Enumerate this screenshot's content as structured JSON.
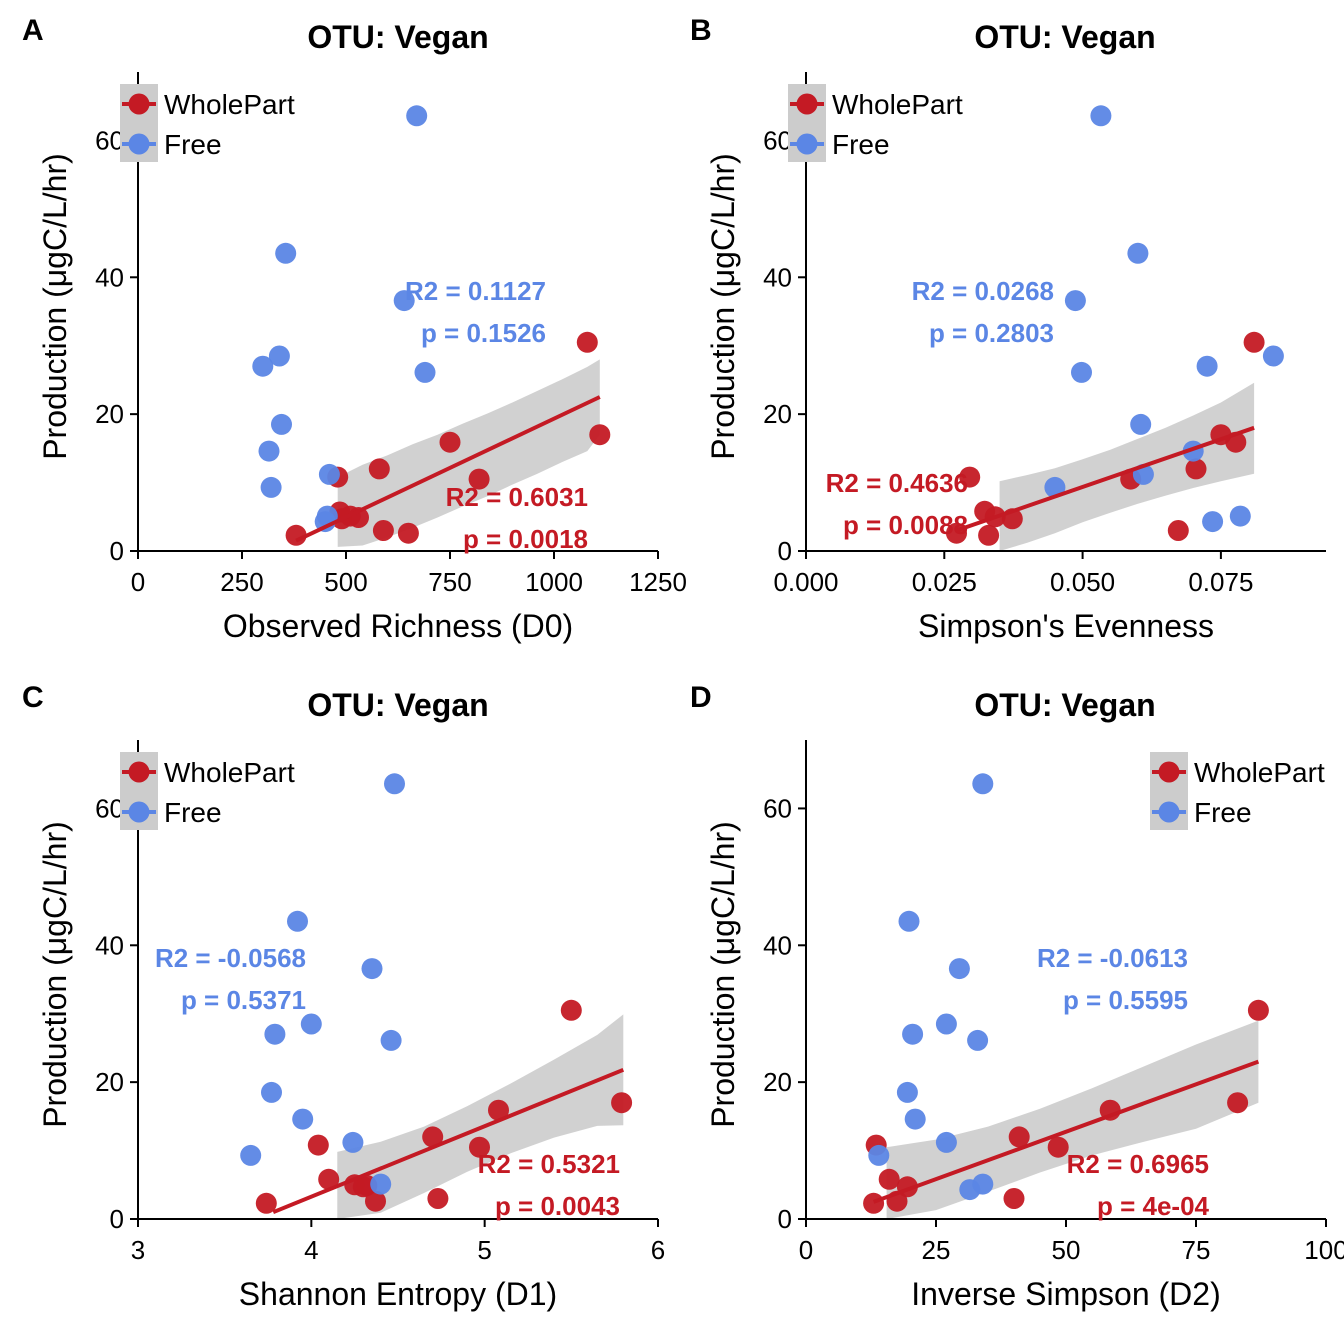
{
  "colors": {
    "wholepart": "#c41a24",
    "free": "#5b86e5",
    "ribbon": "#cccccc",
    "axis": "#000000"
  },
  "chart_data": [
    {
      "panel_letter": "A",
      "type": "scatter",
      "title": "OTU: Vegan",
      "xlabel": "Observed Richness (D0)",
      "ylabel": "Production (μgC/L/hr)",
      "xlim": [
        0,
        1250
      ],
      "ylim": [
        0,
        70
      ],
      "x_ticks": [
        0,
        250,
        500,
        750,
        1000,
        1250
      ],
      "x_tick_labels": [
        "0",
        "250",
        "500",
        "750",
        "1000",
        "1250"
      ],
      "y_ticks": [
        0,
        20,
        40,
        60
      ],
      "y_tick_labels": [
        "0",
        "20",
        "40",
        "60"
      ],
      "grid": false,
      "legend_position": "top-left",
      "series": [
        {
          "name": "WholePart",
          "color_key": "wholepart",
          "points": [
            [
              380,
              2.3
            ],
            [
              485,
              5.7
            ],
            [
              490,
              4.7
            ],
            [
              510,
              5.1
            ],
            [
              530,
              4.9
            ],
            [
              480,
              10.8
            ],
            [
              580,
              12.0
            ],
            [
              590,
              3.0
            ],
            [
              650,
              2.6
            ],
            [
              750,
              15.9
            ],
            [
              820,
              10.5
            ],
            [
              1080,
              30.5
            ],
            [
              1110,
              17.0
            ]
          ],
          "fit": {
            "x": [
              380,
              1110
            ],
            "y": [
              1.5,
              22.5
            ]
          },
          "ribbon": {
            "x": [
              480,
              540,
              600,
              660,
              720,
              780,
              840,
              900,
              960,
              1020,
              1080,
              1110
            ],
            "upper": [
              10.8,
              12.6,
              14.0,
              15.6,
              17.0,
              18.6,
              20.1,
              21.7,
              23.4,
              25.1,
              26.9,
              28.0
            ],
            "lower": [
              0.6,
              0.8,
              2.0,
              3.4,
              4.9,
              6.5,
              8.0,
              9.7,
              11.3,
              13.0,
              14.6,
              17.0
            ]
          },
          "stats": [
            "R2 = 0.6031",
            "p = 0.0018"
          ]
        },
        {
          "name": "Free",
          "color_key": "free",
          "points": [
            [
              300,
              27.0
            ],
            [
              340,
              28.5
            ],
            [
              355,
              43.5
            ],
            [
              345,
              18.5
            ],
            [
              315,
              14.6
            ],
            [
              320,
              9.3
            ],
            [
              450,
              4.3
            ],
            [
              455,
              5.1
            ],
            [
              460,
              11.2
            ],
            [
              640,
              36.6
            ],
            [
              670,
              63.6
            ],
            [
              690,
              26.1
            ]
          ],
          "stats": [
            "R2 = 0.1127",
            "p = 0.1526"
          ]
        }
      ]
    },
    {
      "panel_letter": "B",
      "type": "scatter",
      "title": "OTU: Vegan",
      "xlabel": "Simpson's Evenness",
      "ylabel": "Production (μgC/L/hr)",
      "xlim": [
        0,
        0.094
      ],
      "ylim": [
        0,
        70
      ],
      "x_ticks": [
        0,
        0.025,
        0.05,
        0.075
      ],
      "x_tick_labels": [
        "0.000",
        "0.025",
        "0.050",
        "0.075"
      ],
      "y_ticks": [
        0,
        20,
        40,
        60
      ],
      "y_tick_labels": [
        "0",
        "20",
        "40",
        "60"
      ],
      "grid": false,
      "legend_position": "top-left",
      "series": [
        {
          "name": "WholePart",
          "color_key": "wholepart",
          "points": [
            [
              0.0272,
              2.6
            ],
            [
              0.0296,
              10.8
            ],
            [
              0.0323,
              5.8
            ],
            [
              0.033,
              2.3
            ],
            [
              0.0342,
              5.0
            ],
            [
              0.0373,
              4.7
            ],
            [
              0.0587,
              10.5
            ],
            [
              0.0673,
              3.0
            ],
            [
              0.0705,
              12.0
            ],
            [
              0.075,
              17.0
            ],
            [
              0.0777,
              15.9
            ],
            [
              0.081,
              30.5
            ]
          ],
          "fit": {
            "x": [
              0.0272,
              0.081
            ],
            "y": [
              3.0,
              18.0
            ]
          },
          "ribbon": {
            "x": [
              0.035,
              0.04,
              0.045,
              0.05,
              0.055,
              0.06,
              0.065,
              0.07,
              0.075,
              0.081
            ],
            "upper": [
              10.2,
              11.1,
              12.1,
              13.4,
              14.8,
              16.4,
              18.0,
              19.8,
              21.7,
              24.6
            ],
            "lower": [
              0.0,
              1.2,
              2.6,
              4.2,
              5.6,
              6.9,
              8.1,
              9.2,
              10.2,
              11.3
            ]
          },
          "stats": [
            "R2 = 0.4636",
            "p = 0.0088"
          ]
        },
        {
          "name": "Free",
          "color_key": "free",
          "points": [
            [
              0.045,
              9.3
            ],
            [
              0.0487,
              36.6
            ],
            [
              0.0498,
              26.1
            ],
            [
              0.0533,
              63.6
            ],
            [
              0.06,
              43.5
            ],
            [
              0.0605,
              18.5
            ],
            [
              0.061,
              11.2
            ],
            [
              0.07,
              14.6
            ],
            [
              0.0725,
              27.0
            ],
            [
              0.0735,
              4.3
            ],
            [
              0.0785,
              5.1
            ],
            [
              0.0845,
              28.5
            ]
          ],
          "stats": [
            "R2 = 0.0268",
            "p = 0.2803"
          ]
        }
      ]
    },
    {
      "panel_letter": "C",
      "type": "scatter",
      "title": "OTU: Vegan",
      "xlabel": "Shannon Entropy (D1)",
      "ylabel": "Production (μgC/L/hr)",
      "xlim": [
        3,
        6
      ],
      "ylim": [
        0,
        70
      ],
      "x_ticks": [
        3,
        4,
        5,
        6
      ],
      "x_tick_labels": [
        "3",
        "4",
        "5",
        "6"
      ],
      "y_ticks": [
        0,
        20,
        40,
        60
      ],
      "y_tick_labels": [
        "0",
        "20",
        "40",
        "60"
      ],
      "grid": false,
      "legend_position": "top-left",
      "series": [
        {
          "name": "WholePart",
          "color_key": "wholepart",
          "points": [
            [
              3.74,
              2.3
            ],
            [
              4.04,
              10.8
            ],
            [
              4.1,
              5.8
            ],
            [
              4.25,
              5.0
            ],
            [
              4.3,
              4.7
            ],
            [
              4.32,
              4.9
            ],
            [
              4.37,
              2.6
            ],
            [
              4.7,
              12.0
            ],
            [
              4.73,
              3.0
            ],
            [
              4.97,
              10.5
            ],
            [
              5.08,
              15.9
            ],
            [
              5.5,
              30.5
            ],
            [
              5.79,
              17.0
            ]
          ],
          "fit": {
            "x": [
              3.78,
              5.8
            ],
            "y": [
              1.0,
              21.8
            ]
          },
          "ribbon": {
            "x": [
              4.15,
              4.4,
              4.65,
              4.9,
              5.15,
              5.4,
              5.65,
              5.8
            ],
            "upper": [
              9.8,
              11.3,
              13.5,
              16.5,
              19.8,
              23.3,
              26.9,
              29.9
            ],
            "lower": [
              0.0,
              0.9,
              3.8,
              6.9,
              9.6,
              11.9,
              13.6,
              13.7
            ]
          },
          "stats": [
            "R2 = 0.5321",
            "p = 0.0043"
          ]
        },
        {
          "name": "Free",
          "color_key": "free",
          "points": [
            [
              3.65,
              9.3
            ],
            [
              3.77,
              18.5
            ],
            [
              3.79,
              27.0
            ],
            [
              3.92,
              43.5
            ],
            [
              3.95,
              14.6
            ],
            [
              4.0,
              28.5
            ],
            [
              4.24,
              11.2
            ],
            [
              4.35,
              36.6
            ],
            [
              4.4,
              5.1
            ],
            [
              4.46,
              26.1
            ],
            [
              4.48,
              63.6
            ]
          ],
          "stats": [
            "R2 = -0.0568",
            "p = 0.5371"
          ]
        }
      ]
    },
    {
      "panel_letter": "D",
      "type": "scatter",
      "title": "OTU: Vegan",
      "xlabel": "Inverse Simpson (D2)",
      "ylabel": "Production (μgC/L/hr)",
      "xlim": [
        0,
        100
      ],
      "ylim": [
        0,
        70
      ],
      "x_ticks": [
        0,
        25,
        50,
        75,
        100
      ],
      "x_tick_labels": [
        "0",
        "25",
        "50",
        "75",
        "100"
      ],
      "y_ticks": [
        0,
        20,
        40,
        60
      ],
      "y_tick_labels": [
        "0",
        "20",
        "40",
        "60"
      ],
      "grid": false,
      "legend_position": "top-right",
      "series": [
        {
          "name": "WholePart",
          "color_key": "wholepart",
          "points": [
            [
              13.0,
              2.3
            ],
            [
              13.5,
              10.8
            ],
            [
              16.0,
              5.8
            ],
            [
              17.5,
              2.6
            ],
            [
              19.5,
              4.7
            ],
            [
              40.0,
              3.0
            ],
            [
              41.0,
              12.0
            ],
            [
              48.5,
              10.5
            ],
            [
              58.5,
              15.9
            ],
            [
              83.0,
              17.0
            ],
            [
              87.0,
              30.5
            ]
          ],
          "fit": {
            "x": [
              13.0,
              87.0
            ],
            "y": [
              2.5,
              23.0
            ]
          },
          "ribbon": {
            "x": [
              15.5,
              25.0,
              35.0,
              45.0,
              55.0,
              65.0,
              75.0,
              87.0
            ],
            "upper": [
              10.5,
              11.6,
              13.5,
              16.1,
              19.1,
              22.3,
              25.5,
              29.0
            ],
            "lower": [
              0.0,
              1.3,
              4.0,
              6.8,
              9.3,
              11.3,
              13.2,
              17.0
            ]
          },
          "stats": [
            "R2 = 0.6965",
            "p = 4e-04"
          ]
        },
        {
          "name": "Free",
          "color_key": "free",
          "points": [
            [
              14.0,
              9.3
            ],
            [
              19.5,
              18.5
            ],
            [
              19.8,
              43.5
            ],
            [
              20.5,
              27.0
            ],
            [
              21.0,
              14.6
            ],
            [
              27.0,
              28.5
            ],
            [
              27.0,
              11.2
            ],
            [
              29.5,
              36.6
            ],
            [
              31.5,
              4.3
            ],
            [
              33.0,
              26.1
            ],
            [
              34.0,
              5.1
            ],
            [
              34.0,
              63.6
            ]
          ],
          "stats": [
            "R2 = -0.0613",
            "p = 0.5595"
          ]
        }
      ]
    }
  ]
}
